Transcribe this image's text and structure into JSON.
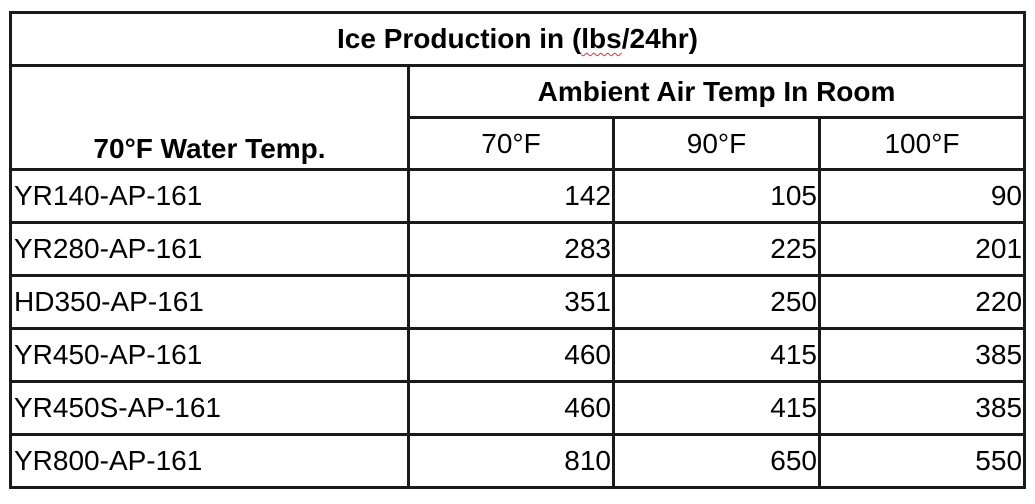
{
  "table": {
    "title_prefix": "Ice Production in (",
    "title_underlined": "lbs",
    "title_suffix": "/24hr)",
    "group_header": "Ambient Air Temp In Room",
    "row_header": "70°F Water Temp.",
    "columns": [
      "70°F",
      "90°F",
      "100°F"
    ],
    "rows": [
      {
        "model": "YR140-AP-161",
        "values": [
          "142",
          "105",
          "90"
        ]
      },
      {
        "model": "YR280-AP-161",
        "values": [
          "283",
          "225",
          "201"
        ]
      },
      {
        "model": "HD350-AP-161",
        "values": [
          "351",
          "250",
          "220"
        ]
      },
      {
        "model": "YR450-AP-161",
        "values": [
          "460",
          "415",
          "385"
        ]
      },
      {
        "model": "YR450S-AP-161",
        "values": [
          "460",
          "415",
          "385"
        ]
      },
      {
        "model": "YR800-AP-161",
        "values": [
          "810",
          "650",
          "550"
        ]
      }
    ]
  }
}
